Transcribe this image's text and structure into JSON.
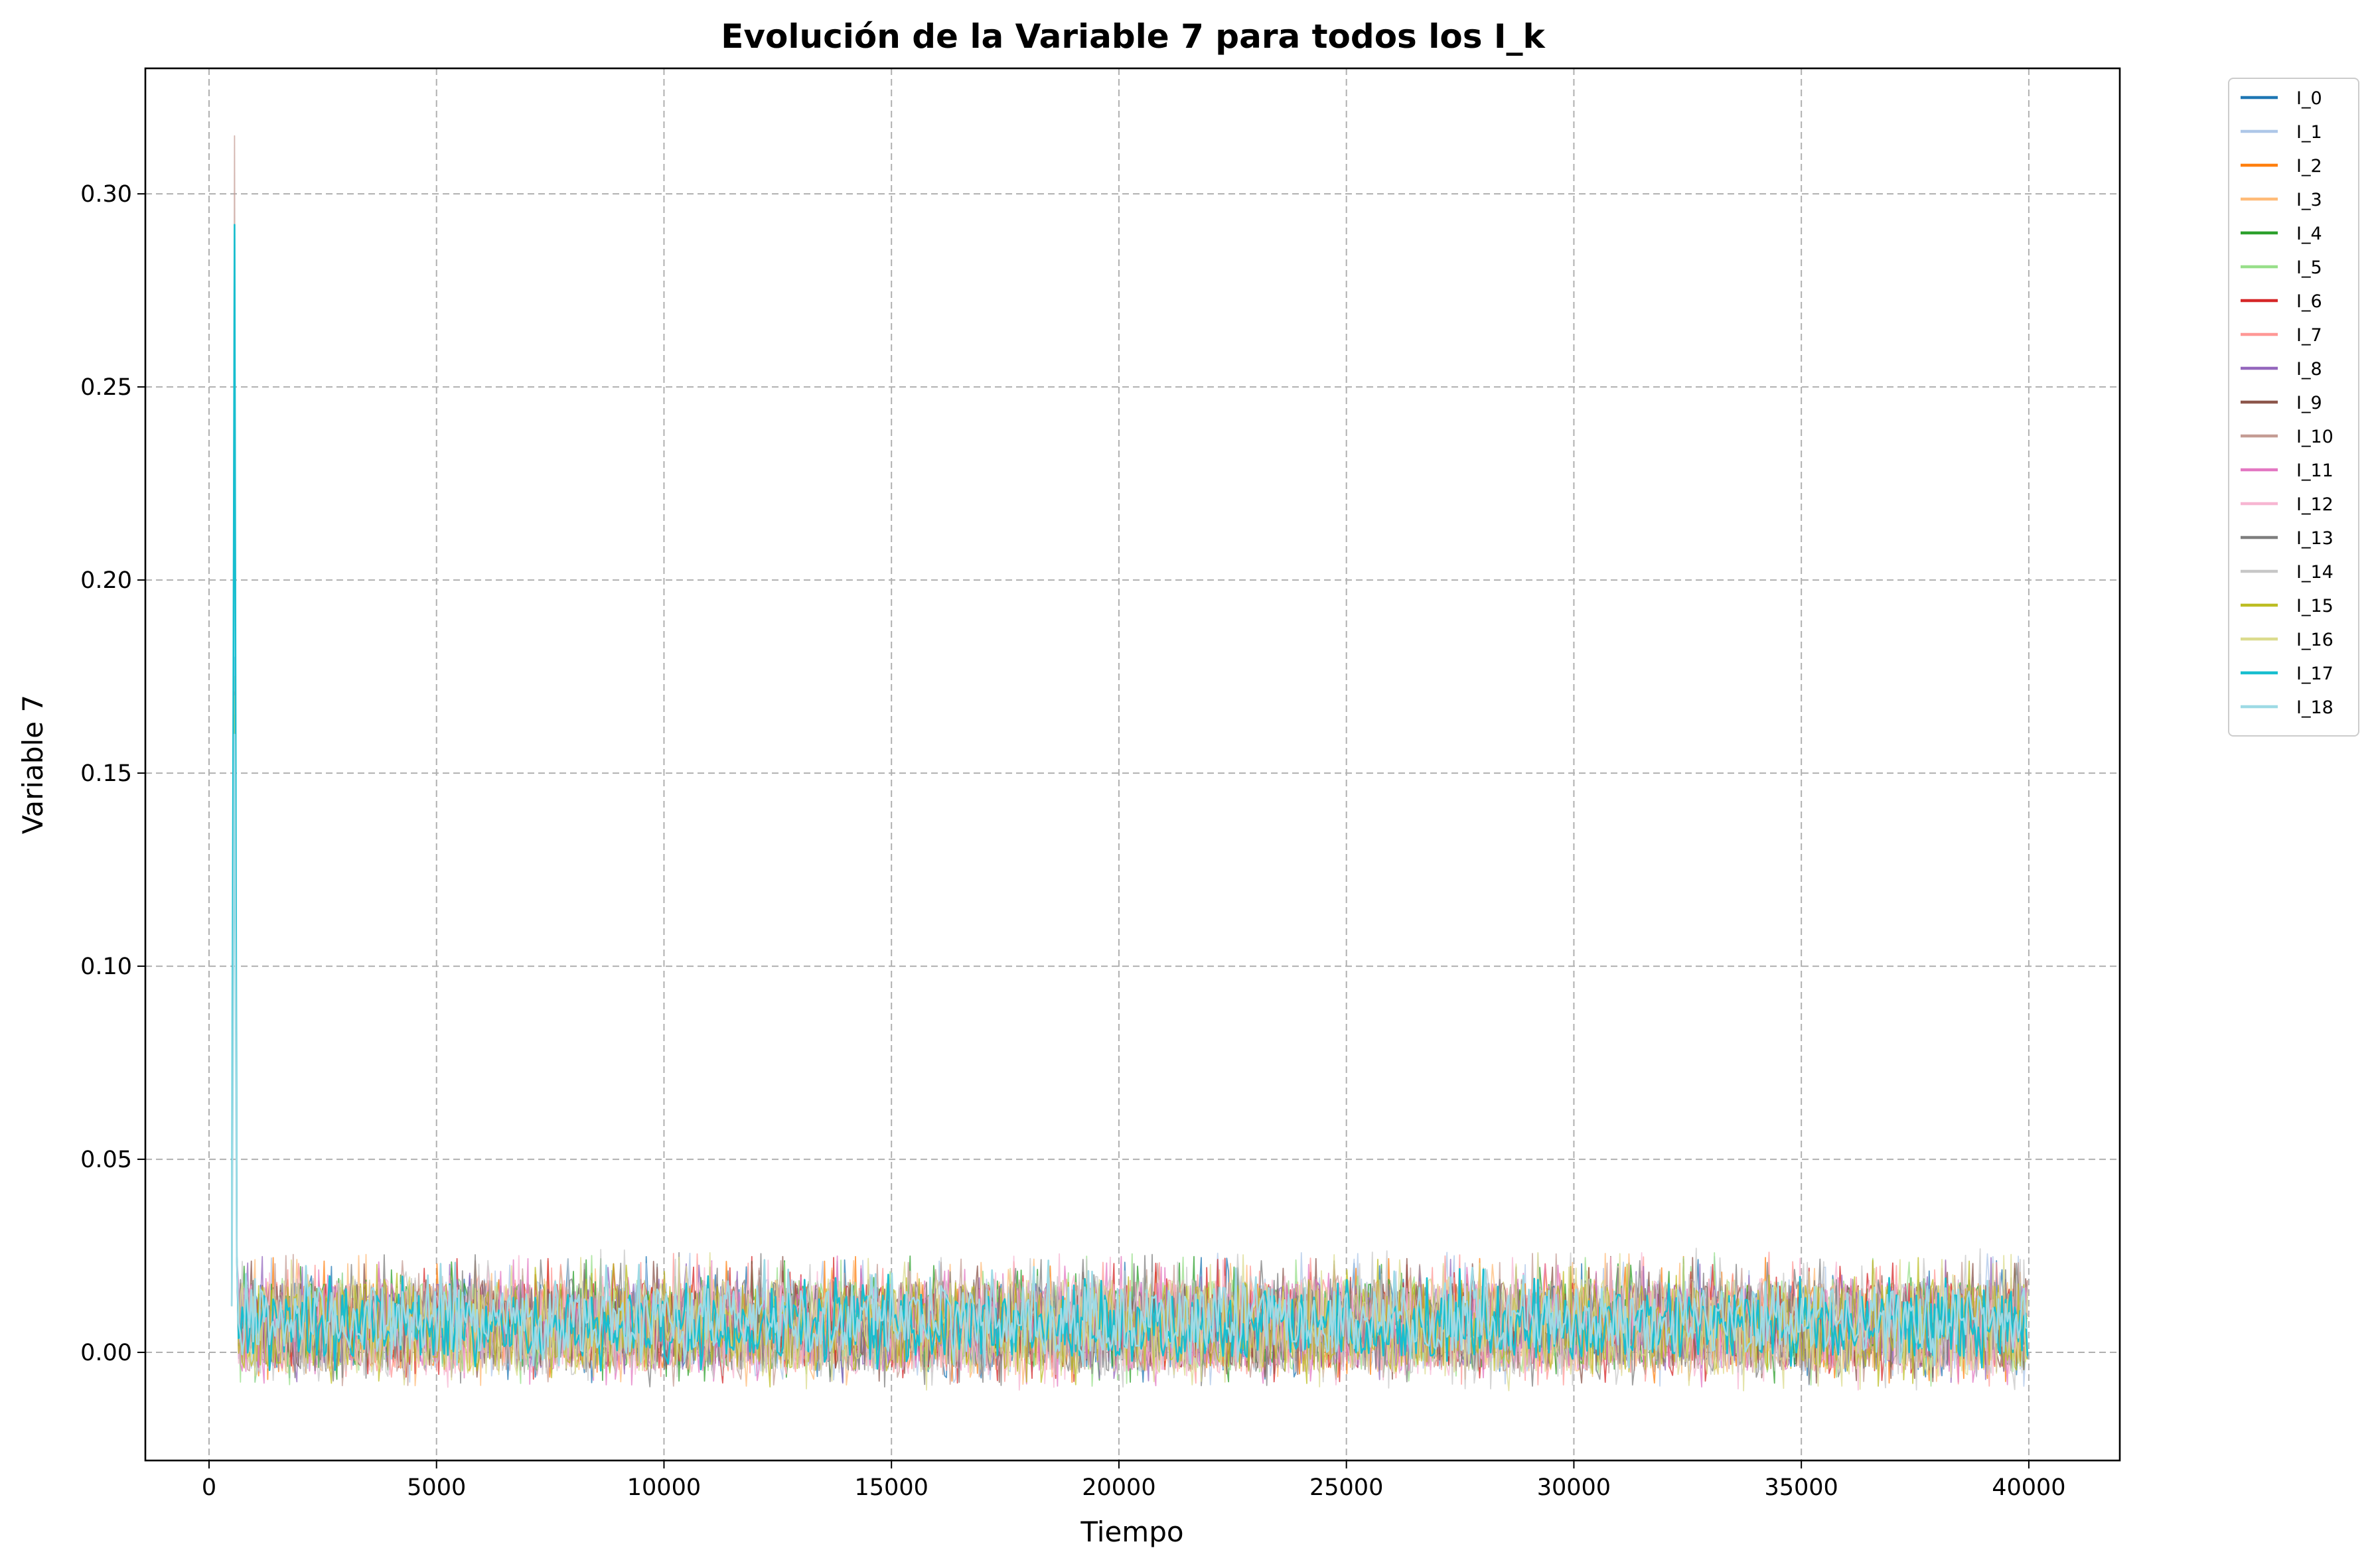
{
  "chart_data": {
    "type": "line",
    "title": "Evolución de la Variable 7 para todos los I_k",
    "xlabel": "Tiempo",
    "ylabel": "Variable 7",
    "xlim": [
      -1400,
      42000
    ],
    "ylim": [
      -0.028,
      0.3325
    ],
    "x_ticks": [
      0,
      5000,
      10000,
      15000,
      20000,
      25000,
      30000,
      35000,
      40000
    ],
    "x_tick_labels": [
      "0",
      "5000",
      "10000",
      "15000",
      "20000",
      "25000",
      "30000",
      "35000",
      "40000"
    ],
    "y_ticks": [
      0.0,
      0.05,
      0.1,
      0.15,
      0.2,
      0.25,
      0.3
    ],
    "y_tick_labels": [
      "0.00",
      "0.05",
      "0.10",
      "0.15",
      "0.20",
      "0.25",
      "0.30"
    ],
    "grid": true,
    "legend_position": "outside-right",
    "x_range_data": [
      500,
      40000
    ],
    "series": [
      {
        "name": "I_0",
        "color": "#1f77b4",
        "peak": 0.17,
        "band": [
          -0.004,
          0.018
        ]
      },
      {
        "name": "I_1",
        "color": "#aec7e8",
        "peak": 0.18,
        "band": [
          -0.005,
          0.019
        ]
      },
      {
        "name": "I_2",
        "color": "#ff7f0e",
        "peak": 0.165,
        "band": [
          -0.004,
          0.018
        ]
      },
      {
        "name": "I_3",
        "color": "#ffbb78",
        "peak": 0.17,
        "band": [
          -0.005,
          0.019
        ]
      },
      {
        "name": "I_4",
        "color": "#2ca02c",
        "peak": 0.171,
        "band": [
          -0.004,
          0.018
        ]
      },
      {
        "name": "I_5",
        "color": "#98df8a",
        "peak": 0.175,
        "band": [
          -0.005,
          0.019
        ]
      },
      {
        "name": "I_6",
        "color": "#d62728",
        "peak": 0.16,
        "band": [
          -0.004,
          0.018
        ]
      },
      {
        "name": "I_7",
        "color": "#ff9896",
        "peak": 0.17,
        "band": [
          -0.005,
          0.019
        ]
      },
      {
        "name": "I_8",
        "color": "#9467bd",
        "peak": 0.168,
        "band": [
          -0.004,
          0.018
        ]
      },
      {
        "name": "I_9",
        "color": "#8c564b",
        "peak": 0.171,
        "band": [
          -0.004,
          0.018
        ]
      },
      {
        "name": "I_10",
        "color": "#c49c94",
        "peak": 0.315,
        "band": [
          -0.005,
          0.019
        ]
      },
      {
        "name": "I_11",
        "color": "#e377c2",
        "peak": 0.165,
        "band": [
          -0.005,
          0.018
        ]
      },
      {
        "name": "I_12",
        "color": "#f7b6d2",
        "peak": 0.17,
        "band": [
          -0.006,
          0.019
        ]
      },
      {
        "name": "I_13",
        "color": "#7f7f7f",
        "peak": 0.17,
        "band": [
          -0.005,
          0.019
        ]
      },
      {
        "name": "I_14",
        "color": "#c7c7c7",
        "peak": 0.175,
        "band": [
          -0.006,
          0.02
        ]
      },
      {
        "name": "I_15",
        "color": "#bcbd22",
        "peak": 0.165,
        "band": [
          -0.005,
          0.018
        ]
      },
      {
        "name": "I_16",
        "color": "#dbdb8d",
        "peak": 0.17,
        "band": [
          -0.006,
          0.019
        ]
      },
      {
        "name": "I_17",
        "color": "#17becf",
        "peak": 0.292,
        "band": [
          -0.001,
          0.015
        ]
      },
      {
        "name": "I_18",
        "color": "#9edae5",
        "peak": 0.16,
        "band": [
          0.0,
          0.017
        ]
      }
    ]
  }
}
